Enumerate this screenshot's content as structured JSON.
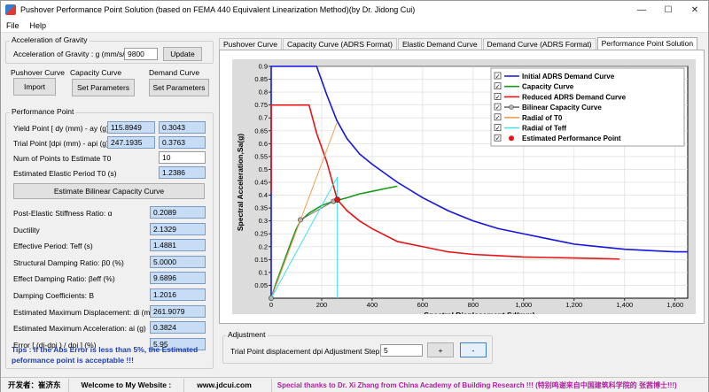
{
  "window": {
    "title": "Pushover Performance Point Solution (based on FEMA 440 Equivalent Linearization Method)(by Dr. Jidong Cui)",
    "controls": {
      "minimize": "—",
      "maximize": "☐",
      "close": "✕"
    }
  },
  "menu": [
    "File",
    "Help"
  ],
  "gravity": {
    "group_label": "Acceleration of Gravity",
    "label": "Acceleration of Gravity : g (mm/s/s)",
    "value": "9800",
    "button": "Update"
  },
  "pushover": {
    "label": "Pushover Curve",
    "button": "Import"
  },
  "capacity": {
    "label": "Capacity Curve",
    "button": "Set Parameters"
  },
  "demand": {
    "label": "Demand Curve",
    "button": "Set Parameters"
  },
  "performance": {
    "group_label": "Performance Point",
    "yield_label": "Yield Point [ dy (mm) - ay (g) ]",
    "yield_dy": "115.8949",
    "yield_ay": "0.3043",
    "trial_label": "Trial Point [dpi (mm) - api (g) ]",
    "trial_dpi": "247.1935",
    "trial_api": "0.3763",
    "num_points_label": "Num of Points to Estimate T0",
    "num_points_value": "10",
    "elastic_period_label": "Estimated Elastic Period T0 (s)",
    "elastic_period_value": "1.2386",
    "estimate_button": "Estimate Bilinear Capacity Curve",
    "results": [
      {
        "label": "Post-Elastic Stiffness Ratio: α",
        "value": "0.2089"
      },
      {
        "label": "Ductility",
        "value": "2.1329"
      },
      {
        "label": "Effective Period: Teff (s)",
        "value": "1.4881"
      },
      {
        "label": "Structural Damping Ratio: β0 (%)",
        "value": "5.0000"
      },
      {
        "label": "Effect Damping Ratio: βeff (%)",
        "value": "9.6896"
      },
      {
        "label": "Damping Coefficients: B",
        "value": "1.2016"
      },
      {
        "label": "Estimated Maximum Displacement: di (mm)",
        "value": "261.9079"
      },
      {
        "label": "Estimated Maximum Acceleration: ai (g)",
        "value": "0.3824"
      },
      {
        "label": "Error [ (di-dpi ) / dpi ] (%)",
        "value": "5.95"
      }
    ],
    "tips": "Tips : If the Abs Error is less than 5%, the Estimated peformance point is acceptable !!!"
  },
  "tabs": [
    {
      "label": "Pushover Curve",
      "active": false
    },
    {
      "label": "Capacity Curve (ADRS Format)",
      "active": false
    },
    {
      "label": "Elastic Demand Curve",
      "active": false
    },
    {
      "label": "Demand Curve (ADRS Format)",
      "active": false
    },
    {
      "label": "Performance Point Solution",
      "active": true
    }
  ],
  "adjustment": {
    "group_label": "Adjustment",
    "label": "Trial Point displacement dpi Adjustment Step (mm)",
    "value": "5",
    "plus": "+",
    "minus": "-"
  },
  "status": {
    "developer": "开发者：崔济东",
    "welcome": "Welcome to My Website :",
    "website": "www.jdcui.com",
    "thanks": "Special thanks to Dr. Xi Zhang from China Academy of Building Research !!! (特别鸣谢来自中国建筑科学院的 张茜博士!!!)"
  },
  "chart_data": {
    "type": "line",
    "xlabel": "Spectral Displacement,Sd(mm)",
    "ylabel": "Spectral Acceleration,Sa(g)",
    "xlim": [
      0,
      1650
    ],
    "ylim": [
      0,
      0.9
    ],
    "xticks": [
      0,
      200,
      400,
      600,
      800,
      1000,
      1200,
      1400,
      1600
    ],
    "xtick_labels": [
      "0",
      "200",
      "400",
      "600",
      "800",
      "1,000",
      "1,200",
      "1,400",
      "1,600"
    ],
    "yticks": [
      0.05,
      0.1,
      0.15,
      0.2,
      0.25,
      0.3,
      0.35,
      0.4,
      0.45,
      0.5,
      0.55,
      0.6,
      0.65,
      0.7,
      0.75,
      0.8,
      0.85,
      0.9
    ],
    "ytick_labels": [
      "0.05",
      "0.1",
      "0.15",
      "0.2",
      "0.25",
      "0.3",
      "0.35",
      "0.4",
      "0.45",
      "0.5",
      "0.55",
      "0.6",
      "0.65",
      "0.7",
      "0.75",
      "0.8",
      "0.85",
      "0.9"
    ],
    "grid": true,
    "legend_position": "top-right",
    "colors": {
      "initial": "#1414e6",
      "capacity": "#1a9a1a",
      "reduced": "#e61414",
      "bilinear": "#707070",
      "radial_t0": "#f0a050",
      "radial_teff": "#40e0f0",
      "perf_point": "#e61414"
    },
    "series": [
      {
        "name": "Initial ADRS Demand Curve",
        "key": "initial",
        "style": "line",
        "x": [
          0,
          0,
          10,
          180,
          220,
          260,
          300,
          350,
          400,
          500,
          600,
          700,
          800,
          900,
          1000,
          1100,
          1200,
          1300,
          1400,
          1500,
          1600,
          1650
        ],
        "y": [
          0.0,
          0.9,
          0.9,
          0.9,
          0.79,
          0.69,
          0.62,
          0.56,
          0.52,
          0.45,
          0.39,
          0.34,
          0.3,
          0.27,
          0.25,
          0.23,
          0.21,
          0.2,
          0.19,
          0.185,
          0.18,
          0.18
        ]
      },
      {
        "name": "Capacity Curve",
        "key": "capacity",
        "style": "line",
        "x": [
          0,
          20,
          50,
          80,
          100,
          116,
          150,
          200,
          247,
          300,
          350,
          400,
          450,
          500
        ],
        "y": [
          0.0,
          0.06,
          0.14,
          0.22,
          0.27,
          0.3,
          0.33,
          0.36,
          0.376,
          0.39,
          0.405,
          0.415,
          0.425,
          0.435
        ]
      },
      {
        "name": "Reduced ADRS Demand Curve",
        "key": "reduced",
        "style": "line",
        "x": [
          0,
          0,
          10,
          150,
          180,
          220,
          262,
          300,
          350,
          400,
          500,
          600,
          700,
          800,
          900,
          1000,
          1100,
          1200,
          1300,
          1380
        ],
        "y": [
          0.41,
          0.75,
          0.75,
          0.75,
          0.64,
          0.53,
          0.382,
          0.34,
          0.3,
          0.27,
          0.22,
          0.2,
          0.18,
          0.17,
          0.165,
          0.16,
          0.158,
          0.156,
          0.154,
          0.152
        ]
      },
      {
        "name": "Bilinear Capacity Curve",
        "key": "bilinear",
        "style": "line-markers",
        "x": [
          0,
          115.8949,
          247.1935
        ],
        "y": [
          0.0,
          0.3043,
          0.3763
        ]
      },
      {
        "name": "Radial of T0",
        "key": "radial_t0",
        "style": "line",
        "x": [
          0,
          260
        ],
        "y": [
          0.0,
          0.68
        ]
      },
      {
        "name": "Radial of Teff",
        "key": "radial_teff",
        "style": "line",
        "x": [
          0,
          262,
          262
        ],
        "y": [
          0.0,
          0.47,
          0.0
        ]
      },
      {
        "name": "Estimated Performance Point",
        "key": "perf_point",
        "style": "point",
        "x": [
          261.9079
        ],
        "y": [
          0.3824
        ]
      }
    ]
  }
}
